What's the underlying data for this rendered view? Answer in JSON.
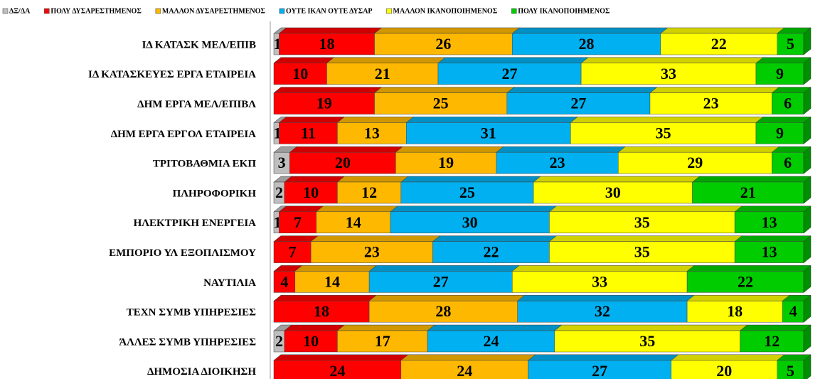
{
  "chart_data": {
    "type": "stacked-bar-3d",
    "categories": [
      "ΙΔ ΚΑΤΑΣΚ ΜΕΛ/ΕΠΙΒ",
      "ΙΔ ΚΑΤΑΣΚΕΥΕΣ ΕΡΓΑ ΕΤΑΙΡΕΙΑ",
      "ΔΗΜ ΕΡΓΑ ΜΕΛ/ΕΠΙΒΛ",
      "ΔΗΜ ΕΡΓΑ ΕΡΓΟΛ ΕΤΑΙΡΕΙΑ",
      "ΤΡΙΤΟΒΑΘΜΙΑ ΕΚΠ",
      "ΠΛΗΡΟΦΟΡΙΚΗ",
      "ΗΛΕΚΤΡΙΚΗ ΕΝΕΡΓΕΙΑ",
      "ΕΜΠΟΡΙΟ ΥΛ ΕΞΟΠΛΙΣΜΟΥ",
      "ΝΑΥΤΙΛΙΑ",
      "ΤΕΧΝ ΣΥΜΒ ΥΠΗΡΕΣΙΕΣ",
      "ΆΛΛΕΣ ΣΥΜΒ ΥΠΗΡΕΣΙΕΣ",
      "ΔΗΜΟΣΙΑ ΔΙΟΙΚΗΣΗ"
    ],
    "series": [
      {
        "name": "ΔΞ/ΔΑ",
        "color": "#bfbfbf",
        "values": [
          1,
          0,
          null,
          1,
          3,
          2,
          1,
          null,
          null,
          null,
          2,
          null
        ]
      },
      {
        "name": "ΠΟΛΥ ΔΥΣΑΡΕΣΤΗΜΕΝΟΣ",
        "color": "#ff0000",
        "values": [
          18,
          10,
          19,
          11,
          20,
          10,
          7,
          7,
          4,
          18,
          10,
          24
        ]
      },
      {
        "name": "ΜΑΛΛΟΝ ΔΥΣΑΡΕΣΤΗΜΕΝΟΣ",
        "color": "#ffb800",
        "values": [
          26,
          21,
          25,
          13,
          19,
          12,
          14,
          23,
          14,
          28,
          17,
          24
        ]
      },
      {
        "name": "ΟΥΤΕ ΙΚΑΝ ΟΥΤΕ ΔΥΣΑΡ",
        "color": "#00b0f0",
        "values": [
          28,
          27,
          27,
          31,
          23,
          25,
          30,
          22,
          27,
          32,
          24,
          27
        ]
      },
      {
        "name": "ΜΑΛΛΟΝ ΙΚΑΝΟΠΟΙΗΜΕΝΟΣ",
        "color": "#ffff00",
        "values": [
          22,
          33,
          23,
          35,
          29,
          30,
          35,
          35,
          33,
          18,
          35,
          20
        ]
      },
      {
        "name": "ΠΟΛΥ ΙΚΑΝΟΠΟΙΗΜΕΝΟΣ",
        "color": "#00cc00",
        "values": [
          5,
          9,
          6,
          9,
          6,
          21,
          13,
          13,
          22,
          4,
          12,
          5
        ]
      }
    ]
  }
}
